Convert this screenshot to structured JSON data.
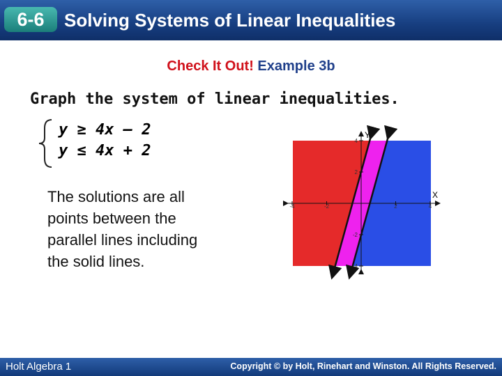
{
  "header": {
    "badge": "6-6",
    "title": "Solving Systems of Linear Inequalities"
  },
  "subtitle": {
    "lead": "Check It Out!",
    "example": "Example 3b"
  },
  "instruction": "Graph the system of linear inequalities.",
  "system": [
    "y ≥ 4x – 2",
    "y ≤ 4x + 2"
  ],
  "explanation": [
    "The solutions are all",
    "points between the",
    "parallel lines including",
    "the solid lines."
  ],
  "graph": {
    "x_label": "X",
    "y_label": "Y",
    "x_ticks": [
      -4,
      -2,
      2,
      4
    ],
    "y_ticks": [
      4,
      2,
      -2,
      -4
    ]
  },
  "footer": {
    "book": "Holt Algebra 1",
    "copyright": "Copyright © by Holt, Rinehart and Winston. All Rights Reserved."
  }
}
